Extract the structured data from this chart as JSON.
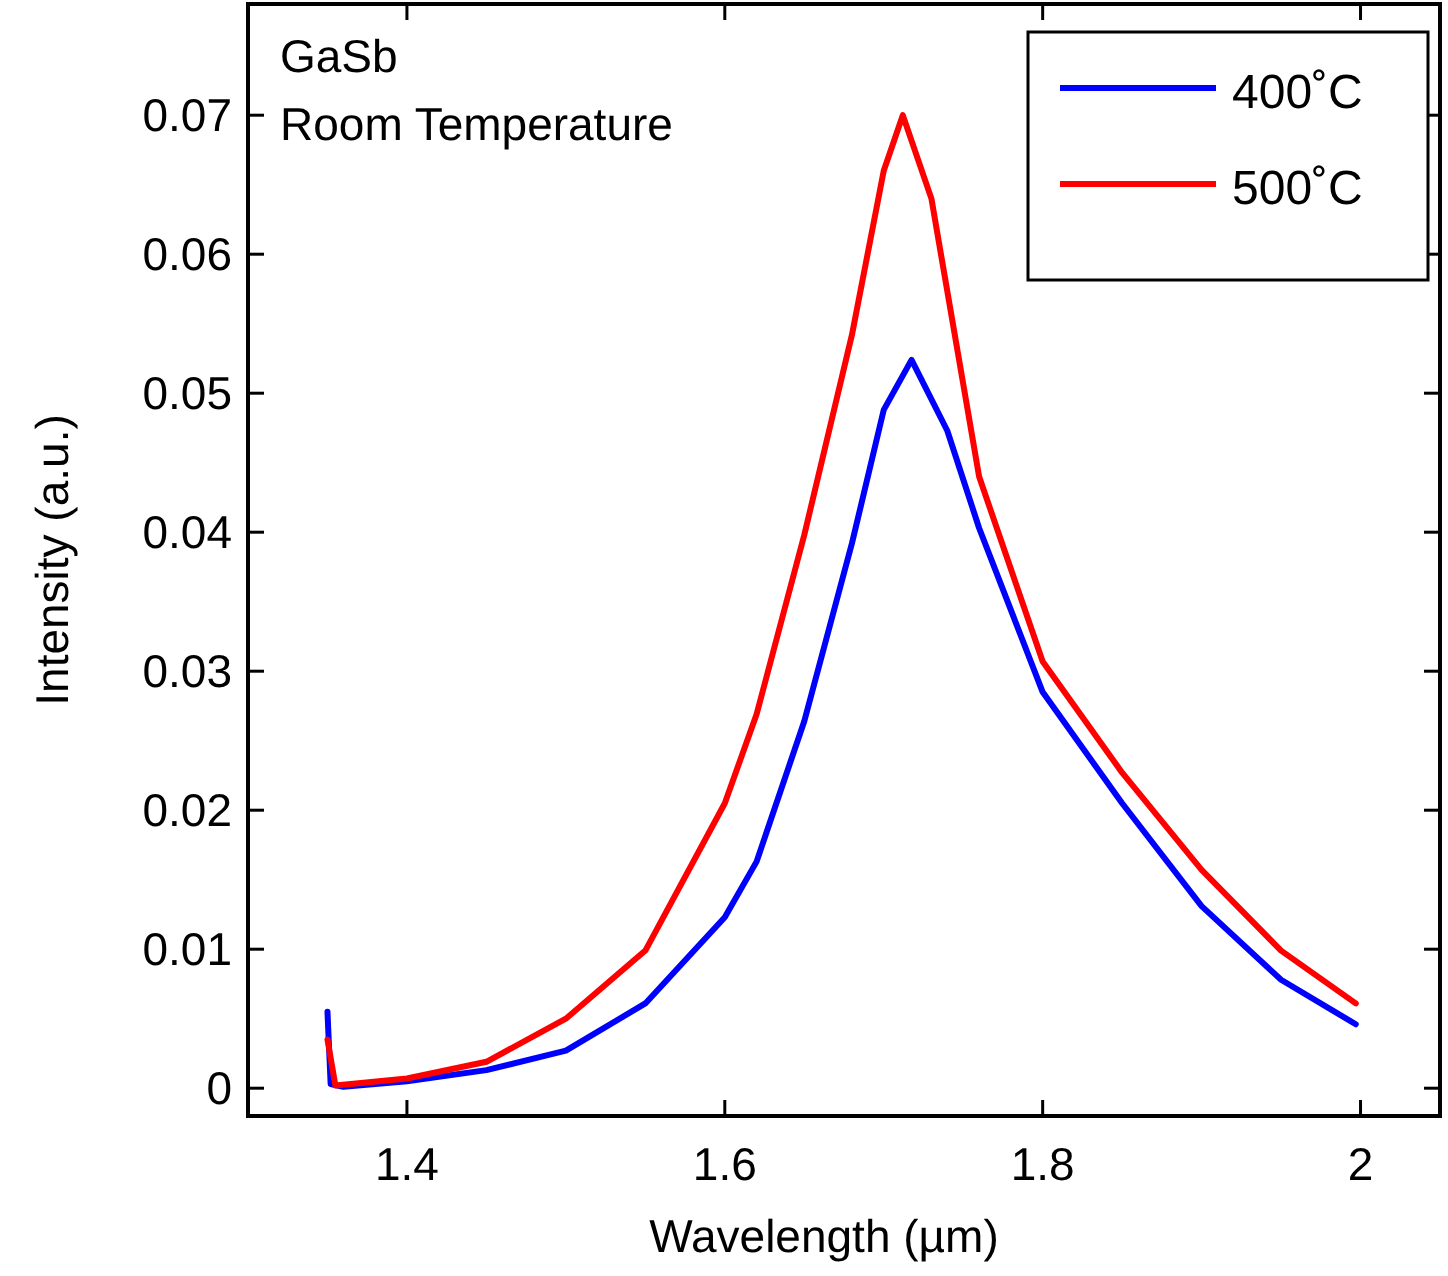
{
  "chart_data": {
    "type": "line",
    "xlabel": "Wavelength (µm)",
    "ylabel": "Intensity (a.u.)",
    "annotations": [
      "GaSb",
      "Room Temperature"
    ],
    "xlim": [
      1.3,
      2.05
    ],
    "ylim": [
      -0.002,
      0.078
    ],
    "xticks": [
      1.4,
      1.6,
      1.8,
      2
    ],
    "yticks": [
      0,
      0.01,
      0.02,
      0.03,
      0.04,
      0.05,
      0.06,
      0.07
    ],
    "grid": false,
    "legend": "top right",
    "marker": "none",
    "line_style": "solid",
    "series": [
      {
        "name": "400˚C",
        "color": "#0000ff",
        "x": [
          1.35,
          1.352,
          1.36,
          1.4,
          1.45,
          1.5,
          1.55,
          1.6,
          1.62,
          1.65,
          1.68,
          1.7,
          1.7175,
          1.74,
          1.76,
          1.8,
          1.85,
          1.9,
          1.95,
          1.997
        ],
        "values": [
          0.0055,
          0.0003,
          0.0001,
          0.0005,
          0.0013,
          0.0027,
          0.0061,
          0.0123,
          0.0163,
          0.0264,
          0.0392,
          0.0488,
          0.0524,
          0.0473,
          0.0403,
          0.0285,
          0.0205,
          0.0131,
          0.0078,
          0.0046
        ]
      },
      {
        "name": "500˚C",
        "color": "#ff0000",
        "x": [
          1.35,
          1.355,
          1.4,
          1.45,
          1.5,
          1.55,
          1.6,
          1.62,
          1.65,
          1.68,
          1.7,
          1.712,
          1.73,
          1.76,
          1.8,
          1.85,
          1.9,
          1.95,
          1.997
        ],
        "values": [
          0.0035,
          0.0002,
          0.0007,
          0.0019,
          0.005,
          0.0099,
          0.0205,
          0.0269,
          0.0398,
          0.0542,
          0.066,
          0.07,
          0.064,
          0.044,
          0.0307,
          0.0227,
          0.0157,
          0.0099,
          0.0061
        ]
      }
    ]
  }
}
